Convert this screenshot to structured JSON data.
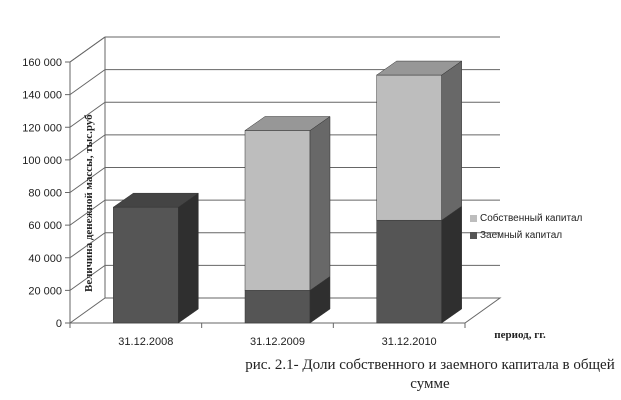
{
  "chart_data": {
    "type": "bar",
    "stacked": true,
    "style": "3d",
    "categories": [
      "31.12.2008",
      "31.12.2009",
      "31.12.2010"
    ],
    "series": [
      {
        "name": "Заемный капитал",
        "values": [
          71000,
          20000,
          63000
        ],
        "color": "#555555"
      },
      {
        "name": "Собственный капитал",
        "values": [
          0,
          98000,
          89000
        ],
        "color": "#bdbdbd"
      }
    ],
    "ylabel": "Величина денежной массы, тыс.руб",
    "xlabel": "период, гг.",
    "ylim": [
      0,
      160000
    ],
    "yticks": [
      "0",
      "20 000",
      "40 000",
      "60 000",
      "80 000",
      "100 000",
      "120 000",
      "140 000",
      "160 000"
    ],
    "grid": true,
    "legend": "right"
  },
  "caption": "рис. 2.1- Доли собственного и заемного капитала в общей сумме"
}
